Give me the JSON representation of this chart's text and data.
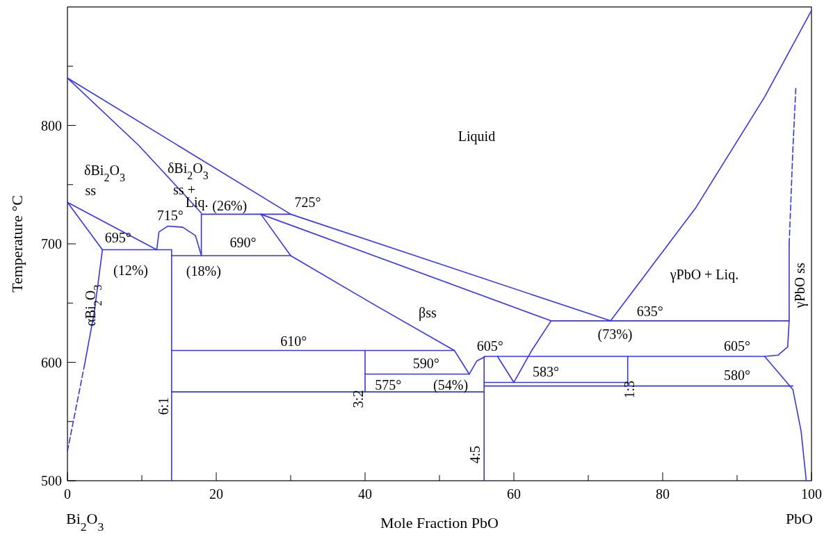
{
  "chart_data": {
    "type": "line",
    "xlabel": "Mole Fraction PbO",
    "ylabel": "Temperature °C",
    "xlim": [
      0,
      100
    ],
    "ylim": [
      500,
      900
    ],
    "xticks": [
      0,
      {
        "value": 10,
        "label": null
      },
      20,
      {
        "value": 30,
        "label": null
      },
      40,
      {
        "value": 50,
        "label": null
      },
      60,
      {
        "value": 70,
        "label": null
      },
      80,
      {
        "value": 90,
        "label": null
      },
      100
    ],
    "yticks": [
      500,
      {
        "value": 550,
        "label": null
      },
      600,
      {
        "value": 650,
        "label": null
      },
      700,
      {
        "value": 750,
        "label": null
      },
      800,
      {
        "value": 850,
        "label": null
      }
    ],
    "grid": false,
    "marker": "none",
    "series": [
      {
        "color": "#3333ff",
        "x": [
          0,
          30,
          73
        ],
        "values": [
          840,
          725,
          635
        ]
      },
      {
        "color": "#3333ff",
        "x": [
          0,
          9.6,
          18
        ],
        "values": [
          840,
          783,
          726
        ]
      },
      {
        "color": "#3333ff",
        "x": [
          73,
          84.4,
          93.7,
          100
        ],
        "values": [
          635,
          730,
          824,
          897
        ]
      },
      {
        "color": "#3333ff",
        "x": [
          18,
          30
        ],
        "values": [
          725,
          725
        ]
      },
      {
        "color": "#3333ff",
        "x": [
          18,
          18
        ],
        "values": [
          690,
          725
        ]
      },
      {
        "color": "#3333ff",
        "x": [
          26,
          30,
          41.4,
          52,
          54,
          55,
          56.2,
          57.8,
          60,
          62.4,
          65
        ],
        "values": [
          725,
          690,
          648,
          610,
          590,
          601,
          605,
          605,
          583,
          610,
          635
        ]
      },
      {
        "color": "#3333ff",
        "x": [
          26,
          65,
          97
        ],
        "values": [
          725,
          635,
          635
        ]
      },
      {
        "color": "#3333ff",
        "x": [
          14,
          30
        ],
        "values": [
          690,
          690
        ]
      },
      {
        "color": "#3333ff",
        "x": [
          4.7,
          14
        ],
        "values": [
          695,
          695
        ]
      },
      {
        "color": "#3333ff",
        "x": [
          12,
          12.3,
          13.5,
          15.5,
          17.2,
          18
        ],
        "values": [
          695,
          710,
          715,
          714,
          707,
          690
        ]
      },
      {
        "color": "#3333ff",
        "x": [
          14,
          14
        ],
        "values": [
          500,
          695
        ]
      },
      {
        "color": "#3333ff",
        "x": [
          0,
          4.7
        ],
        "values": [
          735,
          695
        ]
      },
      {
        "color": "#3333ff",
        "x": [
          0,
          12
        ],
        "values": [
          735,
          695
        ]
      },
      {
        "color": "#3333ff",
        "x": [
          2.3,
          3.6,
          4.7
        ],
        "values": [
          598,
          642,
          695
        ]
      },
      {
        "color": "#3333ff",
        "x": [
          0,
          2.3
        ],
        "values": [
          525,
          598
        ],
        "line_style": "dashed"
      },
      {
        "color": "#3333ff",
        "x": [
          14,
          52
        ],
        "values": [
          610,
          610
        ]
      },
      {
        "color": "#3333ff",
        "x": [
          40,
          54
        ],
        "values": [
          590,
          590
        ]
      },
      {
        "color": "#3333ff",
        "x": [
          40,
          40
        ],
        "values": [
          575,
          610
        ]
      },
      {
        "color": "#3333ff",
        "x": [
          14,
          56
        ],
        "values": [
          575,
          575
        ]
      },
      {
        "color": "#3333ff",
        "x": [
          56,
          56
        ],
        "values": [
          500,
          605
        ]
      },
      {
        "color": "#3333ff",
        "x": [
          57.8,
          93.7,
          95.5,
          96.8,
          97,
          97
        ],
        "values": [
          605,
          605,
          606,
          613,
          635,
          700
        ]
      },
      {
        "color": "#3333ff",
        "x": [
          56,
          75.3
        ],
        "values": [
          583,
          583
        ]
      },
      {
        "color": "#3333ff",
        "x": [
          56,
          97.5
        ],
        "values": [
          580,
          580
        ]
      },
      {
        "color": "#3333ff",
        "x": [
          75.3,
          75.3
        ],
        "values": [
          580,
          605
        ]
      },
      {
        "color": "#3333ff",
        "x": [
          93.7,
          97.5,
          98.6,
          99.3
        ],
        "values": [
          605,
          577,
          542,
          500
        ]
      },
      {
        "color": "#3333ff",
        "x": [
          97,
          97.5,
          97.9
        ],
        "values": [
          700,
          780,
          832
        ],
        "line_style": "dashed"
      }
    ],
    "annotations": [
      "Bi$_{2}$O$_{3}$",
      "PbO",
      "Liquid",
      "δBi$_{2}$O$_{3}$",
      "ss",
      "δBi$_{2}$O$_{3}$",
      "ss +",
      "Liq.",
      "715°",
      "(26%)",
      "725°",
      "695°",
      "(12%)",
      "(18%)",
      "690°",
      "βss",
      "γPbO + Liq.",
      "635°",
      "(73%)",
      "610°",
      "605°",
      "590°",
      "583°",
      "575°",
      "(54%)",
      "605°",
      "580°",
      "αBi$_{2}$O$_{3}$",
      "6:1",
      "3:2",
      "4:5",
      "1:3",
      "γPbO ss"
    ]
  }
}
